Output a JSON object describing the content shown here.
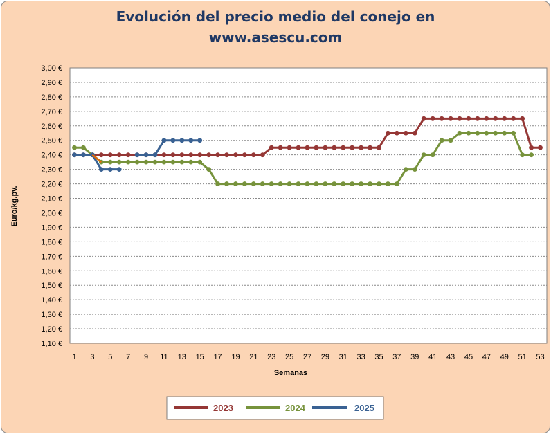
{
  "chart_data": {
    "type": "line",
    "title_line1": "Evolución del precio medio del conejo en",
    "title_line2": "www.asescu.com",
    "xlabel": "Semanas",
    "ylabel": "Euro/kg.pv.",
    "xlim": [
      1,
      53
    ],
    "ylim": [
      1.1,
      3.0
    ],
    "y_step": 0.1,
    "x_ticks": [
      "1",
      "3",
      "5",
      "7",
      "9",
      "11",
      "13",
      "15",
      "17",
      "19",
      "21",
      "23",
      "25",
      "27",
      "29",
      "31",
      "33",
      "35",
      "37",
      "39",
      "41",
      "43",
      "45",
      "47",
      "49",
      "51",
      "53"
    ],
    "y_ticks": [
      "1,10 €",
      "1,20 €",
      "1,30 €",
      "1,40 €",
      "1,50 €",
      "1,60 €",
      "1,70 €",
      "1,80 €",
      "1,90 €",
      "2,00 €",
      "2,10 €",
      "2,20 €",
      "2,30 €",
      "2,40 €",
      "2,50 €",
      "2,60 €",
      "2,70 €",
      "2,80 €",
      "2,90 €",
      "3,00 €"
    ],
    "grid": true,
    "legend_position": "bottom",
    "series": [
      {
        "name": "2023",
        "color": "#953735",
        "values": [
          2.4,
          2.4,
          2.4,
          2.4,
          2.4,
          2.4,
          2.4,
          2.4,
          2.4,
          2.4,
          2.4,
          2.4,
          2.4,
          2.4,
          2.4,
          2.4,
          2.4,
          2.4,
          2.4,
          2.4,
          2.4,
          2.4,
          2.45,
          2.45,
          2.45,
          2.45,
          2.45,
          2.45,
          2.45,
          2.45,
          2.45,
          2.45,
          2.45,
          2.45,
          2.45,
          2.55,
          2.55,
          2.55,
          2.55,
          2.65,
          2.65,
          2.65,
          2.65,
          2.65,
          2.65,
          2.65,
          2.65,
          2.65,
          2.65,
          2.65,
          2.65,
          2.45,
          2.45
        ]
      },
      {
        "name": "2024",
        "color": "#77933c",
        "values": [
          2.45,
          2.45,
          2.4,
          2.35,
          2.35,
          2.35,
          2.35,
          2.35,
          2.35,
          2.35,
          2.35,
          2.35,
          2.35,
          2.35,
          2.35,
          2.3,
          2.2,
          2.2,
          2.2,
          2.2,
          2.2,
          2.2,
          2.2,
          2.2,
          2.2,
          2.2,
          2.2,
          2.2,
          2.2,
          2.2,
          2.2,
          2.2,
          2.2,
          2.2,
          2.2,
          2.2,
          2.2,
          2.3,
          2.3,
          2.4,
          2.4,
          2.5,
          2.5,
          2.55,
          2.55,
          2.55,
          2.55,
          2.55,
          2.55,
          2.55,
          2.4,
          2.4
        ]
      },
      {
        "name": "2025",
        "color": "#3a6293",
        "values": [
          2.4,
          2.4,
          2.4,
          2.3,
          2.3,
          2.3,
          null,
          2.4,
          2.4,
          2.4,
          2.5,
          2.5,
          2.5,
          2.5,
          2.5
        ]
      }
    ]
  },
  "bridge_segment_color": "#e46c0a"
}
